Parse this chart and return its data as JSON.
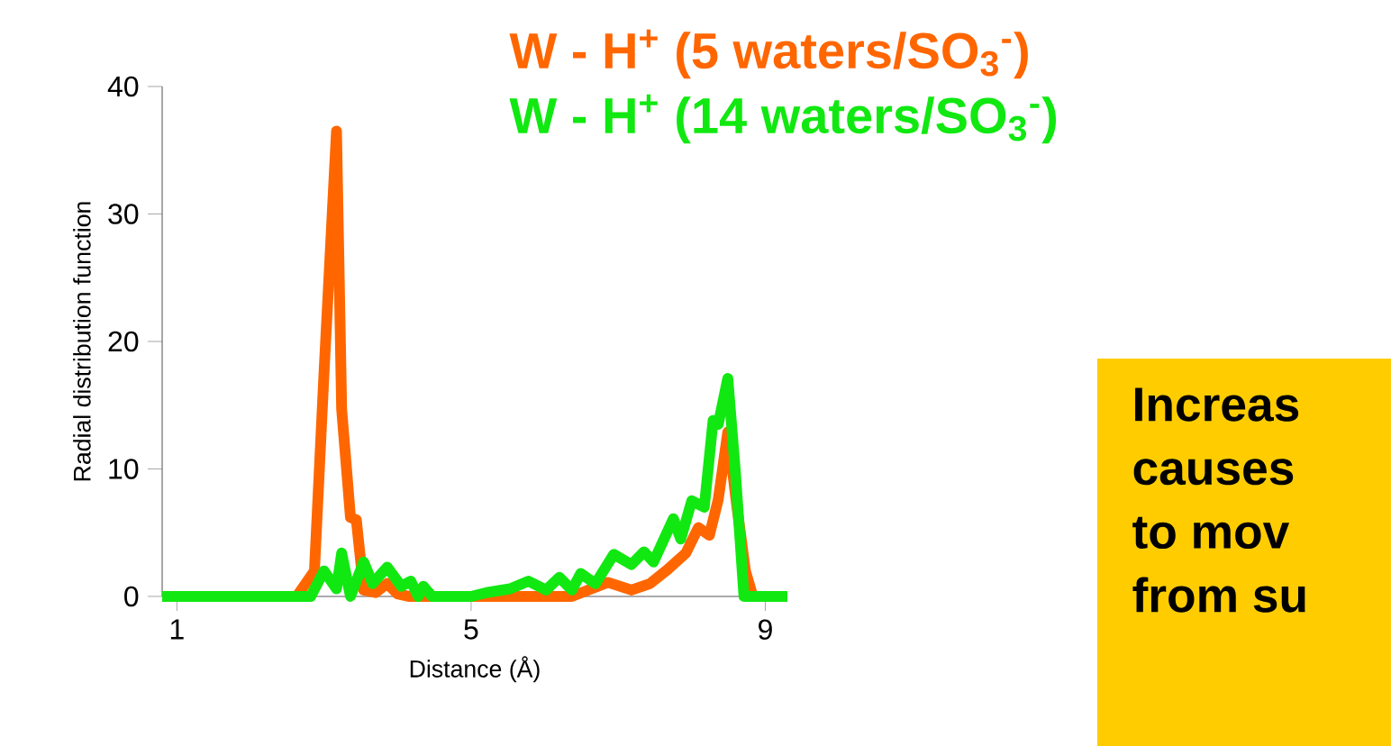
{
  "chart_data": {
    "type": "line",
    "xlabel": "Distance (Å)",
    "ylabel": "Radial distribution function",
    "xlim": [
      0.8,
      9.3
    ],
    "ylim": [
      0,
      40
    ],
    "xticks": [
      1,
      5,
      9
    ],
    "yticks": [
      0,
      10,
      20,
      30,
      40
    ],
    "grid": false,
    "marker": "none",
    "line_style": "solid",
    "annotations": [
      "Increas",
      "causes",
      "to  mov",
      "from su"
    ],
    "series": [
      {
        "name": "W - H$^{+}$ (5 waters/SO$_{3}$$^{-}$)",
        "color": "#ff6600",
        "x": [
          0.8,
          2.63,
          2.87,
          3.0,
          3.17,
          3.24,
          3.36,
          3.44,
          3.54,
          3.7,
          3.86,
          4.0,
          4.15,
          5.0,
          6.0,
          6.37,
          6.86,
          7.18,
          7.43,
          7.67,
          7.92,
          8.09,
          8.24,
          8.36,
          8.49,
          8.61,
          8.73,
          8.83,
          9.3
        ],
        "values": [
          0,
          0,
          2,
          17.5,
          36.5,
          14.7,
          6.2,
          6,
          0.5,
          0.3,
          1,
          0.2,
          0,
          0,
          0,
          0,
          1.1,
          0.5,
          1,
          2.1,
          3.4,
          5.4,
          4.8,
          7.6,
          12.9,
          7.2,
          2,
          0,
          0
        ]
      },
      {
        "name": "W - H$^{+}$ (14 waters/SO$_{3}$$^{-}$)",
        "color": "#11e811",
        "x": [
          0.8,
          2.82,
          3.0,
          3.17,
          3.24,
          3.36,
          3.54,
          3.66,
          3.86,
          4.05,
          4.18,
          4.28,
          4.35,
          4.47,
          5.0,
          5.21,
          5.53,
          5.78,
          6.02,
          6.2,
          6.37,
          6.49,
          6.69,
          6.94,
          7.18,
          7.35,
          7.48,
          7.75,
          7.85,
          8.0,
          8.17,
          8.29,
          8.36,
          8.49,
          8.59,
          8.71,
          9.3
        ],
        "values": [
          0,
          0,
          2,
          0.6,
          3.4,
          0,
          2.7,
          1,
          2.3,
          0.8,
          1.2,
          0,
          0.8,
          0,
          0,
          0.3,
          0.6,
          1.2,
          0.5,
          1.5,
          0.5,
          1.8,
          1.0,
          3.3,
          2.5,
          3.5,
          2.7,
          6.1,
          4.5,
          7.5,
          7.0,
          13.8,
          13.5,
          17.1,
          10,
          0,
          0
        ]
      }
    ]
  }
}
